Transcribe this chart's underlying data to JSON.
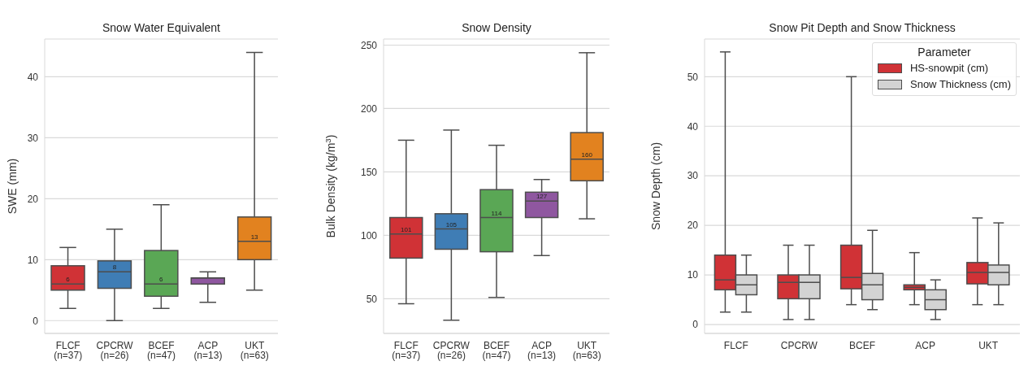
{
  "chart_data": [
    {
      "type": "box",
      "title": "Snow Water Equivalent",
      "ylabel": "SWE (mm)",
      "categories": [
        "FLCF\n(n=37)",
        "CPCRW\n(n=26)",
        "BCEF\n(n=47)",
        "ACP\n(n=13)",
        "UKT\n(n=63)"
      ],
      "colors": [
        "#d03236",
        "#3f7db5",
        "#5aa755",
        "#8f57a0",
        "#e2821f"
      ],
      "boxes": [
        {
          "low": 2,
          "q1": 5,
          "median": 6,
          "q3": 9,
          "high": 12
        },
        {
          "low": 0,
          "q1": 5.3,
          "median": 8,
          "q3": 9.8,
          "high": 15
        },
        {
          "low": 2,
          "q1": 4,
          "median": 6,
          "q3": 11.5,
          "high": 19
        },
        {
          "low": 3,
          "q1": 6,
          "median": 7,
          "q3": 7,
          "high": 8
        },
        {
          "low": 5,
          "q1": 10,
          "median": 13,
          "q3": 17,
          "high": 44
        }
      ],
      "value_labels": [
        "6",
        "8",
        "6",
        null,
        "13"
      ],
      "ylim": [
        -2.1,
        46.2
      ],
      "yticks": [
        0,
        10,
        20,
        30,
        40
      ],
      "grid": "y"
    },
    {
      "type": "box",
      "title": "Snow Density",
      "ylabel": "Bulk Density (kg/m$^{3}$)",
      "categories": [
        "FLCF\n(n=37)",
        "CPCRW\n(n=26)",
        "BCEF\n(n=47)",
        "ACP\n(n=13)",
        "UKT\n(n=63)"
      ],
      "colors": [
        "#d03236",
        "#3f7db5",
        "#5aa755",
        "#8f57a0",
        "#e2821f"
      ],
      "boxes": [
        {
          "low": 46,
          "q1": 82,
          "median": 101,
          "q3": 114,
          "high": 175
        },
        {
          "low": 33,
          "q1": 89,
          "median": 105,
          "q3": 117,
          "high": 183
        },
        {
          "low": 51,
          "q1": 87,
          "median": 114,
          "q3": 136,
          "high": 171
        },
        {
          "low": 84,
          "q1": 114,
          "median": 127,
          "q3": 134,
          "high": 144
        },
        {
          "low": 113,
          "q1": 143,
          "median": 160,
          "q3": 181,
          "high": 244
        }
      ],
      "value_labels": [
        "101",
        "105",
        "114",
        "127",
        "160"
      ],
      "ylim": [
        22.6,
        254.8
      ],
      "yticks": [
        50,
        100,
        150,
        200,
        250
      ],
      "grid": "y"
    },
    {
      "type": "box",
      "title": "Snow Pit Depth and Snow Thickness",
      "ylabel": "Snow Depth (cm)",
      "legend_title": "Parameter",
      "legend": "top right",
      "categories": [
        "FLCF",
        "CPCRW",
        "BCEF",
        "ACP",
        "UKT"
      ],
      "series": [
        {
          "name": "HS-snowpit (cm)",
          "color": "#d03236",
          "boxes": [
            {
              "low": 2.5,
              "q1": 7,
              "median": 9,
              "q3": 14,
              "high": 55
            },
            {
              "low": 1,
              "q1": 5.2,
              "median": 8.5,
              "q3": 10,
              "high": 16
            },
            {
              "low": 4,
              "q1": 7.2,
              "median": 9.5,
              "q3": 16,
              "high": 50
            },
            {
              "low": 4,
              "q1": 7,
              "median": 7.5,
              "q3": 8,
              "high": 14.5
            },
            {
              "low": 4,
              "q1": 8.2,
              "median": 10.5,
              "q3": 12.5,
              "high": 21.5
            }
          ]
        },
        {
          "name": "Snow Thickness (cm)",
          "color": "#d3d3d3",
          "boxes": [
            {
              "low": 2.5,
              "q1": 6,
              "median": 8,
              "q3": 10,
              "high": 14
            },
            {
              "low": 1,
              "q1": 5.2,
              "median": 8.5,
              "q3": 10,
              "high": 16
            },
            {
              "low": 3,
              "q1": 5,
              "median": 8,
              "q3": 10.3,
              "high": 19
            },
            {
              "low": 1,
              "q1": 3,
              "median": 5,
              "q3": 7,
              "high": 9
            },
            {
              "low": 4,
              "q1": 8,
              "median": 10.5,
              "q3": 12,
              "high": 20.5
            }
          ]
        }
      ],
      "ylim": [
        -1.8,
        57.6
      ],
      "yticks": [
        0,
        10,
        20,
        30,
        40,
        50
      ],
      "grid": "y"
    }
  ]
}
